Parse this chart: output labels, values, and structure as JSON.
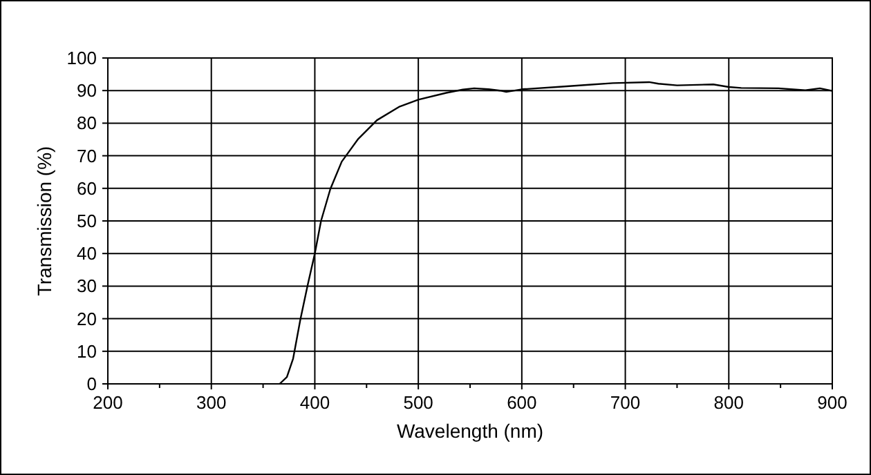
{
  "chart_data": {
    "type": "line",
    "xlabel": "Wavelength (nm)",
    "ylabel": "Transmission (%)",
    "xlim": [
      200,
      900
    ],
    "xticks": [
      200,
      300,
      400,
      500,
      600,
      700,
      800,
      900
    ],
    "ylim": [
      0,
      100
    ],
    "yticks": [
      0,
      10,
      20,
      30,
      40,
      50,
      60,
      70,
      80,
      90,
      100
    ],
    "grid": true,
    "series": [
      {
        "color": "#000000",
        "x": [
          366,
          373,
          379,
          386,
          393,
          400,
          406,
          415,
          426,
          442,
          460,
          482,
          500,
          527,
          543,
          554,
          568,
          579,
          585,
          600,
          634,
          665,
          688,
          723,
          732,
          750,
          785,
          800,
          812,
          848,
          874,
          888,
          900
        ],
        "values": [
          0,
          2.1,
          7.7,
          19.7,
          30.2,
          40,
          50,
          59.8,
          68.2,
          75.2,
          80.9,
          85.1,
          87.2,
          89.3,
          90.3,
          90.7,
          90.4,
          90,
          89.6,
          90.4,
          91.1,
          91.8,
          92.3,
          92.6,
          92.1,
          91.6,
          91.9,
          91.1,
          90.8,
          90.7,
          90.1,
          90.7,
          89.9
        ]
      }
    ]
  }
}
